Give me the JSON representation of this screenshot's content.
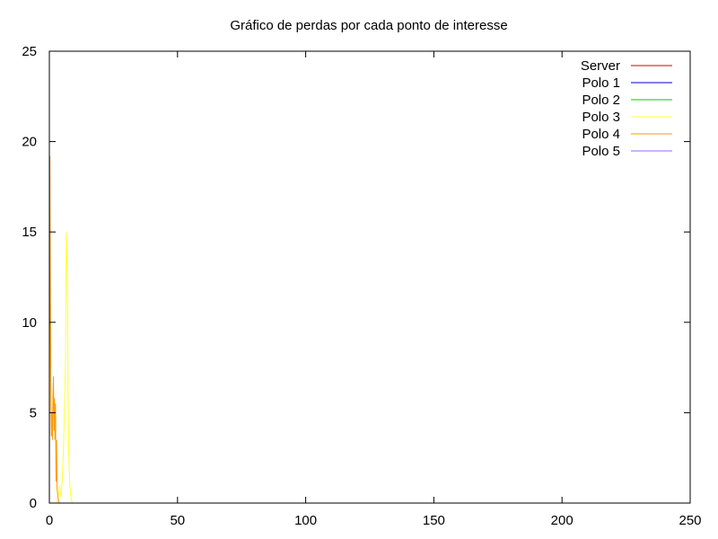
{
  "chart_data": {
    "type": "line",
    "title": "Gráfico de perdas por cada ponto de interesse",
    "xlabel": "",
    "ylabel": "",
    "xlim": [
      0,
      250
    ],
    "ylim": [
      0,
      25
    ],
    "x_ticks": [
      0,
      50,
      100,
      150,
      200,
      250
    ],
    "y_ticks": [
      0,
      5,
      10,
      15,
      20,
      25
    ],
    "x_tick_labels": [
      "0",
      "50",
      "100",
      "150",
      "200",
      "250"
    ],
    "y_tick_labels": [
      "0",
      "5",
      "10",
      "15",
      "20",
      "25"
    ],
    "grid": false,
    "legend_position": "top-right",
    "series": [
      {
        "name": "Server",
        "color": "#cc0000",
        "x": [
          0,
          0.5,
          1,
          1.5,
          2,
          2.5,
          3,
          3.5,
          4,
          5,
          6,
          7,
          8,
          9
        ],
        "y": [
          0,
          0,
          0,
          0,
          0,
          0,
          0,
          0,
          0,
          0,
          0,
          0,
          0,
          0
        ]
      },
      {
        "name": "Polo 1",
        "color": "#0000cc",
        "x": [
          0,
          0.5,
          1,
          1.5,
          2,
          2.5,
          3,
          3.5,
          4,
          5,
          6,
          7,
          8,
          9
        ],
        "y": [
          0,
          0,
          0,
          0,
          0,
          0,
          0,
          0,
          0,
          0,
          0,
          0,
          0,
          0
        ]
      },
      {
        "name": "Polo 2",
        "color": "#00cc00",
        "x": [
          0,
          0.5,
          1,
          1.5,
          2,
          2.5,
          3,
          3.5,
          4,
          5,
          6,
          7,
          8,
          9
        ],
        "y": [
          0,
          0,
          0,
          0,
          0,
          0,
          0,
          0,
          0,
          0,
          0,
          0,
          0,
          0
        ]
      },
      {
        "name": "Polo 3",
        "color": "#ffff33",
        "x": [
          0,
          1,
          2,
          3,
          3.5,
          4,
          4.5,
          5,
          5.5,
          6,
          6.3,
          6.6,
          7,
          7.3,
          7.6,
          8,
          8.5,
          9
        ],
        "y": [
          0,
          0,
          0,
          0,
          0.5,
          1,
          0.3,
          1.2,
          3,
          6,
          8,
          15,
          12.5,
          6,
          2.5,
          1,
          0.2,
          0
        ]
      },
      {
        "name": "Polo 4",
        "color": "#ff9900",
        "x": [
          0,
          0.2,
          0.4,
          0.6,
          0.8,
          1,
          1.2,
          1.4,
          1.6,
          1.8,
          2,
          2.2,
          2.4,
          2.6,
          2.8,
          3,
          3.3,
          3.6,
          4
        ],
        "y": [
          0,
          19.2,
          11.5,
          6,
          3.7,
          5,
          3.5,
          6,
          7,
          4,
          5.8,
          3.5,
          5.5,
          1.2,
          3.5,
          0.8,
          0.4,
          0.1,
          0
        ]
      },
      {
        "name": "Polo 5",
        "color": "#9966ff",
        "x": [
          0,
          0.5,
          1,
          1.5,
          2,
          2.5,
          3,
          3.5,
          4,
          5,
          6,
          7,
          8,
          9
        ],
        "y": [
          0,
          0,
          0,
          0,
          0,
          0,
          0,
          0,
          0,
          0,
          0,
          0,
          0,
          0
        ]
      }
    ]
  }
}
